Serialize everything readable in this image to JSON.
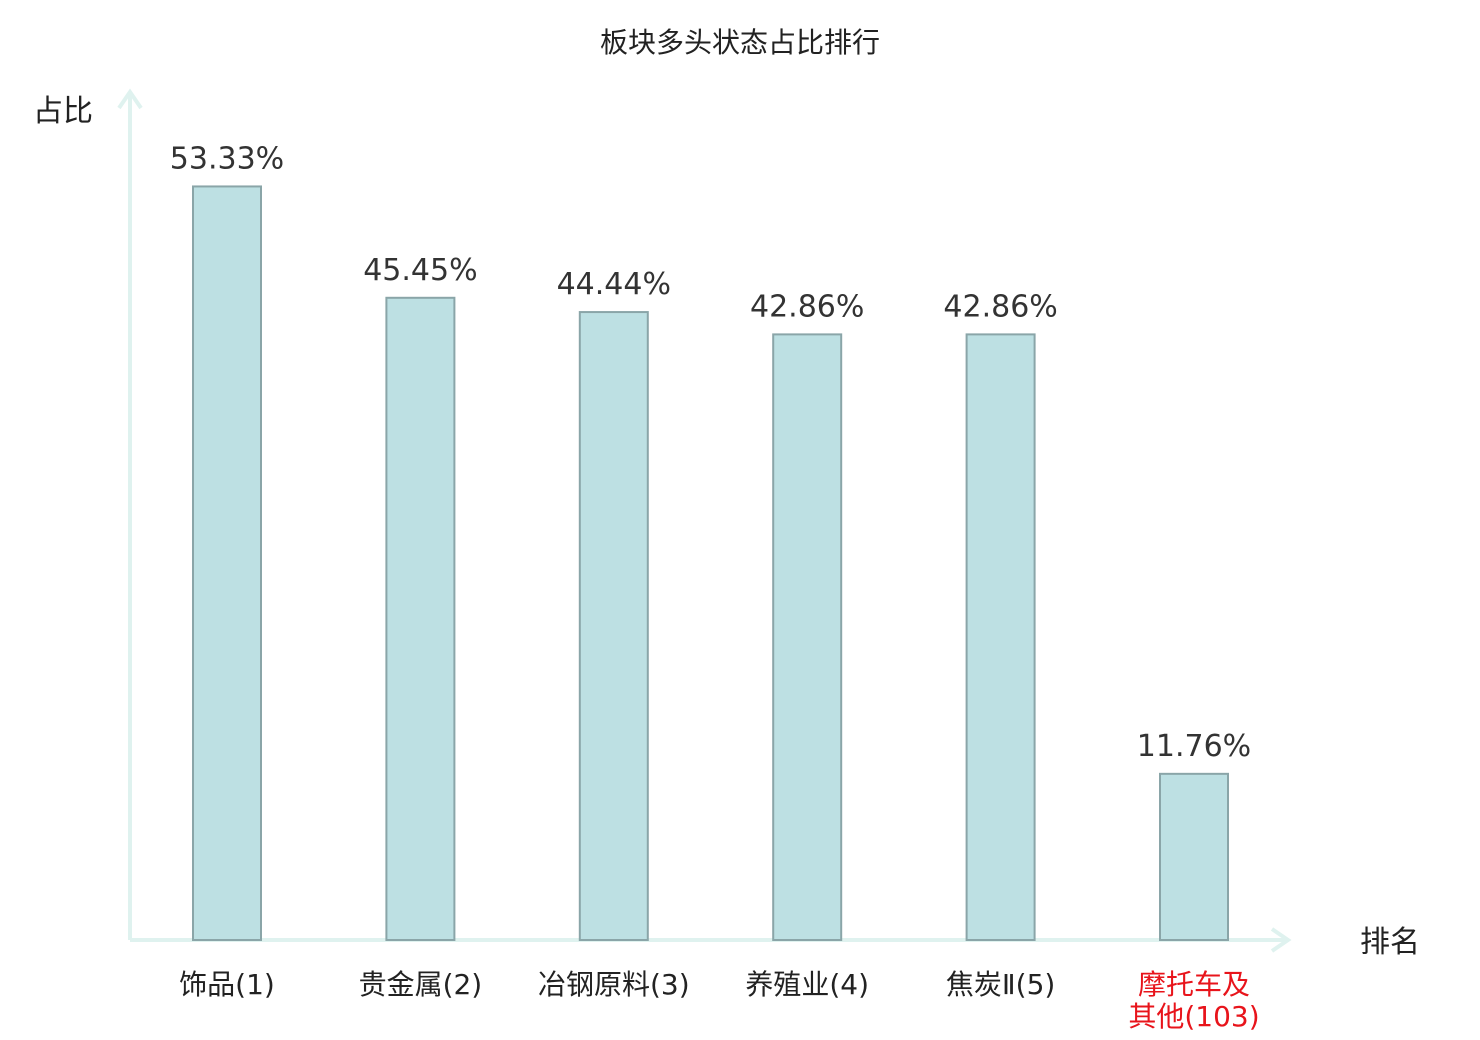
{
  "chart_data": {
    "type": "bar",
    "title": "板块多头状态占比排行",
    "ylabel": "占比",
    "xlabel": "排名",
    "ylim": [
      0,
      60
    ],
    "grid": false,
    "categories": [
      [
        "饰品(1)"
      ],
      [
        "贵金属(2)"
      ],
      [
        "冶钢原料(3)"
      ],
      [
        "养殖业(4)"
      ],
      [
        "焦炭Ⅱ(5)"
      ],
      [
        "摩托车及",
        "其他(103)"
      ]
    ],
    "values": [
      53.33,
      45.45,
      44.44,
      42.86,
      42.86,
      11.76
    ],
    "value_labels": [
      "53.33%",
      "45.45%",
      "44.44%",
      "42.86%",
      "42.86%",
      "11.76%"
    ],
    "highlight_index": 5,
    "colors": {
      "bar_fill": "#bde0e3",
      "bar_stroke": "#8aa5a8",
      "axis": "#dff2ef",
      "highlight_text": "#e8141b"
    }
  }
}
